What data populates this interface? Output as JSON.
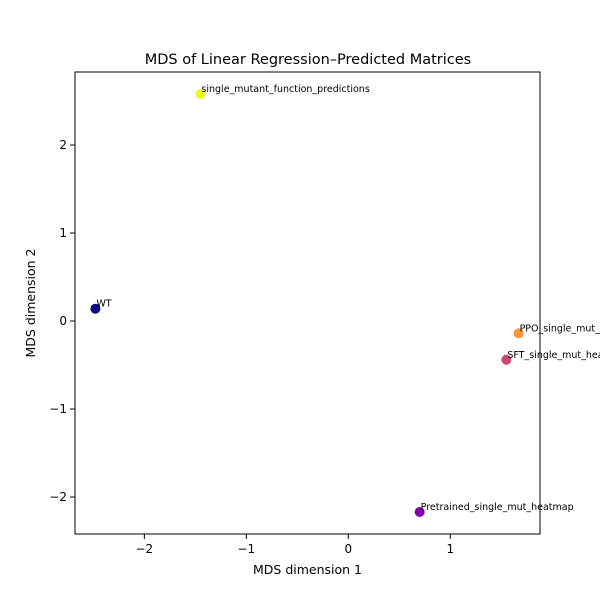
{
  "chart_data": {
    "type": "scatter",
    "title": "MDS of Linear Regression–Predicted Matrices",
    "xlabel": "MDS dimension 1",
    "ylabel": "MDS dimension 2",
    "xlim": [
      -2.68,
      1.88
    ],
    "ylim": [
      -2.42,
      2.83
    ],
    "xticks": [
      -2,
      -1,
      0,
      1
    ],
    "yticks": [
      -2,
      -1,
      0,
      1,
      2
    ],
    "xtick_labels": [
      "−2",
      "−1",
      "0",
      "1"
    ],
    "ytick_labels": [
      "−2",
      "−1",
      "0",
      "1",
      "2"
    ],
    "grid": false,
    "points": [
      {
        "label": "single_mutant_function_predictions",
        "x": -1.45,
        "y": 2.58,
        "color": "#f0f921"
      },
      {
        "label": "WT",
        "x": -2.48,
        "y": 0.14,
        "color": "#0d0887"
      },
      {
        "label": "PPO_single_mut_heatmap",
        "x": 1.67,
        "y": -0.14,
        "color": "#f89540"
      },
      {
        "label": "SFT_single_mut_heatmap",
        "x": 1.55,
        "y": -0.44,
        "color": "#cc4778"
      },
      {
        "label": "Pretrained_single_mut_heatmap",
        "x": 0.7,
        "y": -2.17,
        "color": "#7e03a8"
      }
    ]
  }
}
